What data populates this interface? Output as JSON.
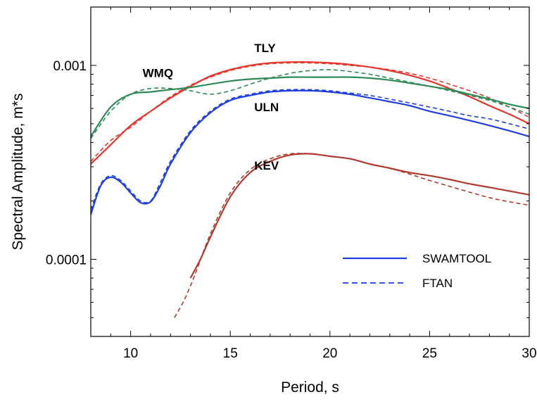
{
  "chart_data": {
    "type": "line",
    "xlabel": "Period, s",
    "ylabel": "Spectral Amplitude,  m*s",
    "xlim": [
      8,
      30
    ],
    "ylim": [
      4e-05,
      0.002
    ],
    "yscale": "log",
    "x_ticks": [
      10,
      15,
      20,
      25,
      30
    ],
    "y_ticks": [
      0.0001,
      0.001
    ],
    "x_tick_labels": [
      "10",
      "15",
      "20",
      "25",
      "30"
    ],
    "y_tick_labels": [
      "0.0001",
      "0.001"
    ],
    "grid": false,
    "legend": {
      "position": "lower-right",
      "entries": [
        {
          "label": "SWAMTOOL",
          "style": "solid",
          "color": "#1f3fe0"
        },
        {
          "label": "FTAN",
          "style": "dashed",
          "color": "#1f3fe0"
        }
      ]
    },
    "series": [
      {
        "name": "TLY",
        "color": "#e8352a",
        "method": "SWAMTOOL",
        "x": [
          8,
          9,
          10,
          11,
          12,
          13,
          14,
          15,
          16,
          17,
          18,
          19,
          20,
          21,
          22,
          23,
          24,
          25,
          26,
          27,
          28,
          29,
          30
        ],
        "y": [
          0.00031,
          0.00039,
          0.00049,
          0.00058,
          0.00068,
          0.00078,
          0.00088,
          0.00095,
          0.001,
          0.00103,
          0.00104,
          0.00104,
          0.00103,
          0.00101,
          0.00098,
          0.00094,
          0.00089,
          0.00083,
          0.00076,
          0.00069,
          0.00062,
          0.00056,
          0.0005
        ]
      },
      {
        "name": "TLY",
        "color": "#e8352a",
        "method": "FTAN",
        "x": [
          8,
          9,
          10,
          11,
          12,
          13,
          14,
          15,
          16,
          17,
          18,
          19,
          20,
          21,
          22,
          23,
          24,
          25,
          26,
          27,
          28,
          29,
          30
        ],
        "y": [
          0.00032,
          0.00041,
          0.00048,
          0.00058,
          0.00069,
          0.00079,
          0.00087,
          0.00094,
          0.00099,
          0.00102,
          0.00103,
          0.00103,
          0.00102,
          0.001,
          0.00098,
          0.00095,
          0.00091,
          0.00086,
          0.0008,
          0.00074,
          0.00068,
          0.00061,
          0.00054
        ]
      },
      {
        "name": "WMQ",
        "color": "#2e8b57",
        "method": "SWAMTOOL",
        "x": [
          8,
          9,
          10,
          11,
          12,
          13,
          14,
          15,
          16,
          17,
          18,
          19,
          20,
          21,
          22,
          23,
          24,
          25,
          26,
          27,
          28,
          29,
          30
        ],
        "y": [
          0.00043,
          0.00061,
          0.00071,
          0.00073,
          0.00075,
          0.00077,
          0.0008,
          0.00083,
          0.00085,
          0.00086,
          0.00087,
          0.00087,
          0.00087,
          0.00087,
          0.00086,
          0.00084,
          0.00081,
          0.00078,
          0.00075,
          0.00071,
          0.00067,
          0.00063,
          0.0006
        ]
      },
      {
        "name": "WMQ",
        "color": "#2e8b57",
        "method": "FTAN",
        "x": [
          8,
          9,
          10,
          11,
          12,
          13,
          14,
          15,
          16,
          17,
          18,
          19,
          20,
          21,
          22,
          23,
          24,
          25,
          26,
          27,
          28,
          29,
          30
        ],
        "y": [
          0.00042,
          0.00058,
          0.00071,
          0.00076,
          0.00076,
          0.00074,
          0.00071,
          0.00074,
          0.0008,
          0.00086,
          0.00091,
          0.00094,
          0.00095,
          0.00093,
          0.0009,
          0.00086,
          0.00082,
          0.00078,
          0.00074,
          0.0007,
          0.00066,
          0.00061,
          0.00056
        ]
      },
      {
        "name": "ULN",
        "color": "#1f3fe0",
        "method": "SWAMTOOL",
        "x": [
          8,
          8.5,
          9,
          9.5,
          10,
          10.5,
          11,
          11.5,
          12,
          13,
          14,
          15,
          16,
          17,
          18,
          19,
          20,
          21,
          22,
          23,
          24,
          25,
          26,
          27,
          28,
          29,
          30
        ],
        "y": [
          0.00017,
          0.00024,
          0.000265,
          0.00025,
          0.00022,
          0.000196,
          0.000198,
          0.00024,
          0.00031,
          0.00045,
          0.00057,
          0.00066,
          0.0007,
          0.00073,
          0.00074,
          0.00074,
          0.00073,
          0.00071,
          0.00068,
          0.00065,
          0.00062,
          0.00058,
          0.00055,
          0.00052,
          0.00049,
          0.00046,
          0.00043
        ]
      },
      {
        "name": "ULN",
        "color": "#1f3fe0",
        "method": "FTAN",
        "x": [
          8,
          8.5,
          9,
          9.5,
          10,
          10.5,
          11,
          11.5,
          12,
          13,
          14,
          15,
          16,
          17,
          18,
          19,
          20,
          21,
          22,
          23,
          24,
          25,
          26,
          27,
          28,
          29,
          30
        ],
        "y": [
          0.00018,
          0.000245,
          0.00027,
          0.000255,
          0.000225,
          0.0002,
          0.0002,
          0.00025,
          0.00032,
          0.00046,
          0.00058,
          0.00067,
          0.00071,
          0.00074,
          0.00075,
          0.00075,
          0.00074,
          0.00072,
          0.0007,
          0.00067,
          0.00064,
          0.00061,
          0.00058,
          0.00055,
          0.00053,
          0.0005,
          0.00047
        ]
      },
      {
        "name": "KEV",
        "color": "#b03a2e",
        "method": "SWAMTOOL",
        "x": [
          13,
          13.5,
          14,
          15,
          16,
          17,
          18,
          19,
          20,
          21,
          22,
          23,
          24,
          25,
          26,
          27,
          28,
          29,
          30
        ],
        "y": [
          8e-05,
          0.0001,
          0.00013,
          0.00021,
          0.00028,
          0.00032,
          0.000345,
          0.00035,
          0.00034,
          0.00033,
          0.00031,
          0.000295,
          0.00028,
          0.00027,
          0.000258,
          0.000245,
          0.000235,
          0.000225,
          0.000215
        ]
      },
      {
        "name": "KEV",
        "color": "#b03a2e",
        "method": "FTAN",
        "x": [
          12.2,
          12.7,
          13.2,
          14,
          15,
          16,
          17,
          18,
          19,
          20,
          21,
          22,
          23,
          24,
          25,
          26,
          27,
          28,
          29,
          30
        ],
        "y": [
          5e-05,
          6.2e-05,
          8.2e-05,
          0.000135,
          0.00022,
          0.00029,
          0.00033,
          0.00035,
          0.00035,
          0.00034,
          0.00033,
          0.00031,
          0.000295,
          0.000275,
          0.000255,
          0.000238,
          0.000222,
          0.000208,
          0.000198,
          0.00019
        ]
      }
    ],
    "annotations": [
      {
        "text": "TLY",
        "x": 16.2,
        "y": 0.00117
      },
      {
        "text": "WMQ",
        "x": 10.6,
        "y": 0.00087
      },
      {
        "text": "ULN",
        "x": 16.2,
        "y": 0.00058
      },
      {
        "text": "KEV",
        "x": 16.2,
        "y": 0.00029
      }
    ]
  }
}
